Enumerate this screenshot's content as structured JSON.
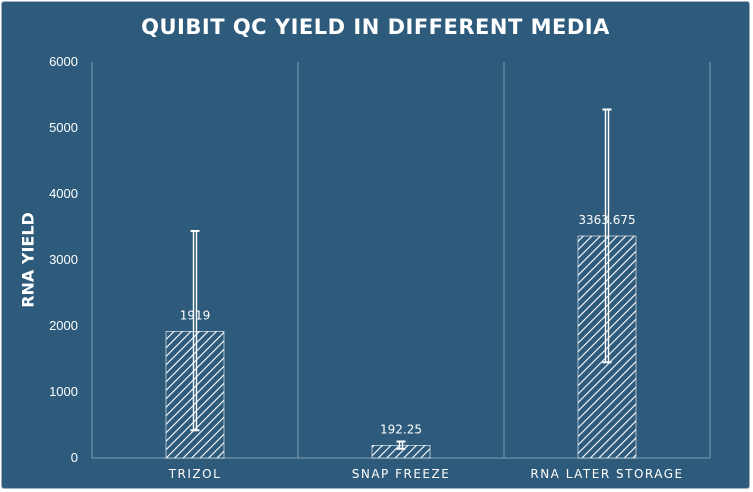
{
  "chart_data": {
    "type": "bar",
    "title": "QUIBIT QC YIELD IN DIFFERENT MEDIA",
    "xlabel": "",
    "ylabel": "RNA YIELD",
    "categories": [
      "TRIZOL",
      "SNAP FREEZE",
      "RNA LATER STORAGE"
    ],
    "values": [
      1919,
      192.25,
      3363.675
    ],
    "data_labels": [
      "1919",
      "192.25",
      "3363.675"
    ],
    "error_bars": [
      {
        "low": 420,
        "high": 3440
      },
      {
        "low": 140,
        "high": 250
      },
      {
        "low": 1450,
        "high": 5280
      }
    ],
    "ylim": [
      0,
      6000
    ],
    "yticks": [
      0,
      1000,
      2000,
      3000,
      4000,
      5000,
      6000
    ],
    "grid": "vertical category separators",
    "bar_fill": "diagonal hatch",
    "colors": {
      "background": "#2e5b7c",
      "foreground": "#ffffff"
    }
  }
}
